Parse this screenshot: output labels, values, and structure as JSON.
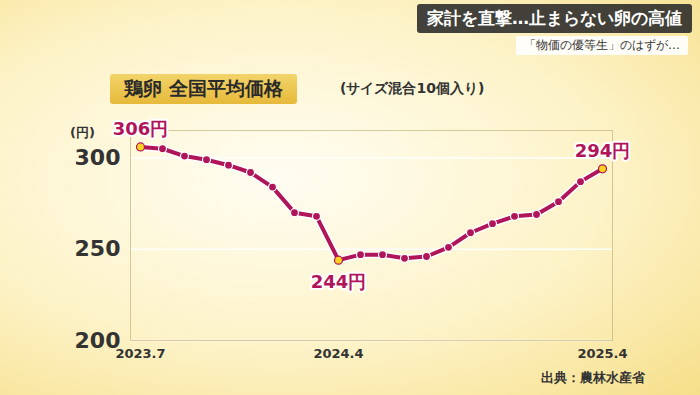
{
  "banner": {
    "headline": "家計を直撃…止まらない卵の高値",
    "tagline": "「物価の優等生」のはずが…"
  },
  "chart_data": {
    "type": "line",
    "title": "鶏卵 全国平均価格",
    "subtitle": "(サイズ混合10個入り)",
    "y_label": "(円)",
    "source": "出典：農林水産省",
    "categories": [
      "2023.7",
      null,
      null,
      null,
      null,
      null,
      null,
      null,
      null,
      "2024.4",
      null,
      null,
      null,
      null,
      null,
      null,
      null,
      null,
      null,
      null,
      null,
      "2025.4"
    ],
    "values": [
      306,
      305,
      301,
      299,
      296,
      292,
      284,
      270,
      268,
      244,
      247,
      247,
      245,
      246,
      251,
      259,
      264,
      268,
      269,
      276,
      287,
      294
    ],
    "value_labels": [
      "306円",
      null,
      null,
      null,
      null,
      null,
      null,
      null,
      null,
      "244円",
      null,
      null,
      null,
      null,
      null,
      null,
      null,
      null,
      null,
      null,
      null,
      "294円"
    ],
    "data_labels": true,
    "color": "#b0155a",
    "marker": "circle",
    "ylim": [
      200,
      315
    ],
    "yticks": [
      200,
      250,
      300
    ],
    "grid": true
  }
}
